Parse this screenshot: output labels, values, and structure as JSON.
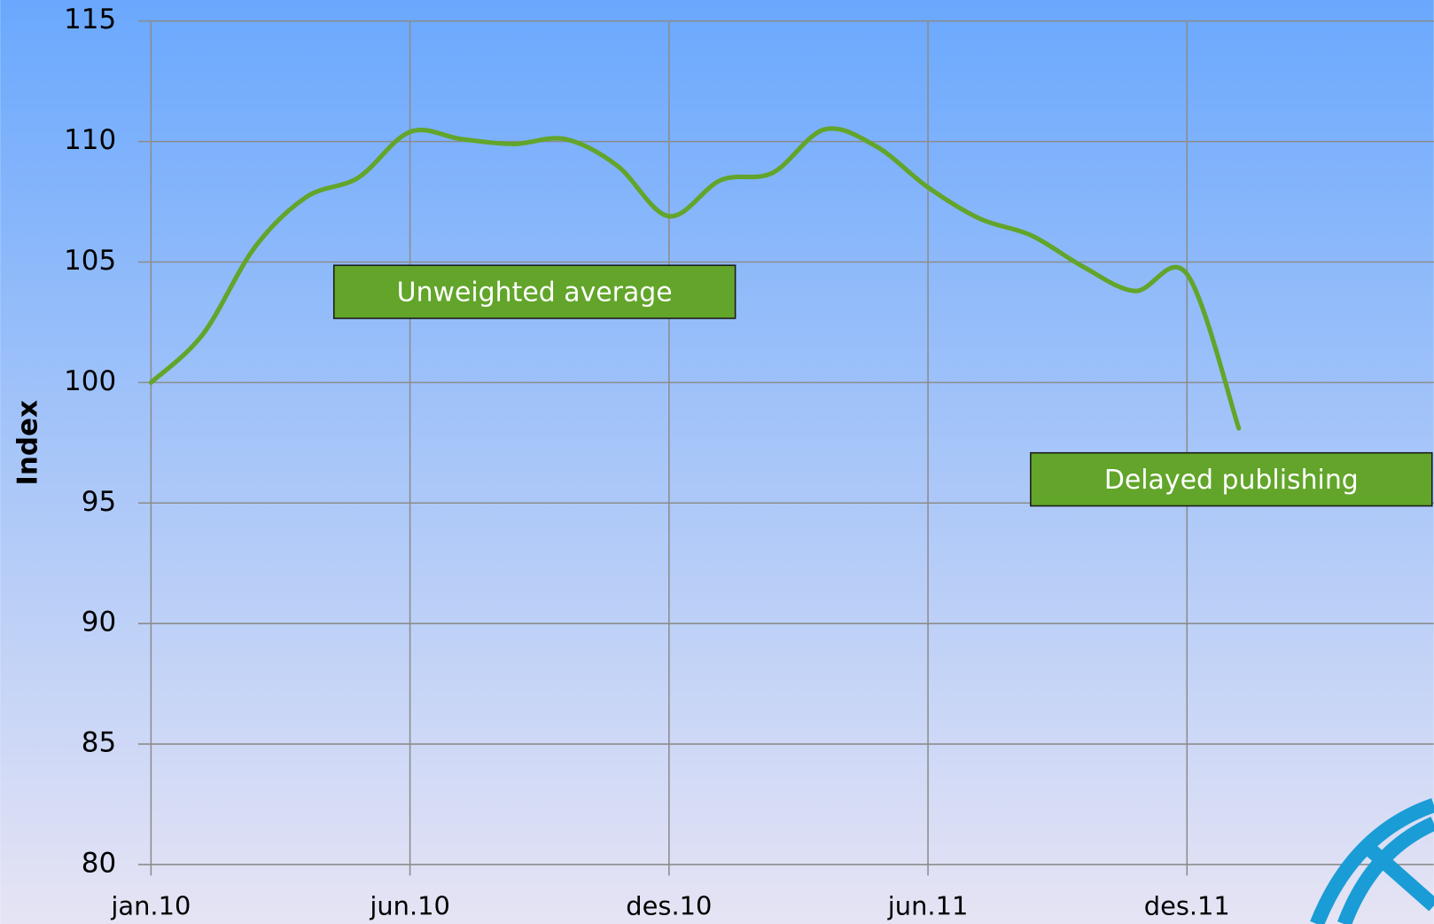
{
  "chart_data": {
    "type": "line",
    "y_label": "Index",
    "categories": [
      "jan.10",
      null,
      null,
      null,
      null,
      "jun.10",
      null,
      null,
      null,
      null,
      "des.10",
      null,
      null,
      null,
      null,
      "jun.11",
      null,
      null,
      null,
      null,
      "des.11",
      null
    ],
    "series": [
      {
        "name": "Index",
        "color": "#62a52a",
        "values": [
          100,
          102.0,
          105.6,
          107.7,
          108.5,
          110.4,
          110.1,
          109.9,
          110.1,
          109.0,
          106.9,
          108.4,
          108.7,
          110.5,
          109.8,
          108.1,
          106.8,
          106.1,
          104.8,
          103.8,
          104.5,
          98.1
        ]
      }
    ],
    "ylim": [
      80,
      115
    ],
    "yticks": [
      80,
      85,
      90,
      95,
      100,
      105,
      110,
      115
    ],
    "grid": true,
    "annotations": [
      "Unweighted average",
      "Delayed publishing"
    ]
  }
}
